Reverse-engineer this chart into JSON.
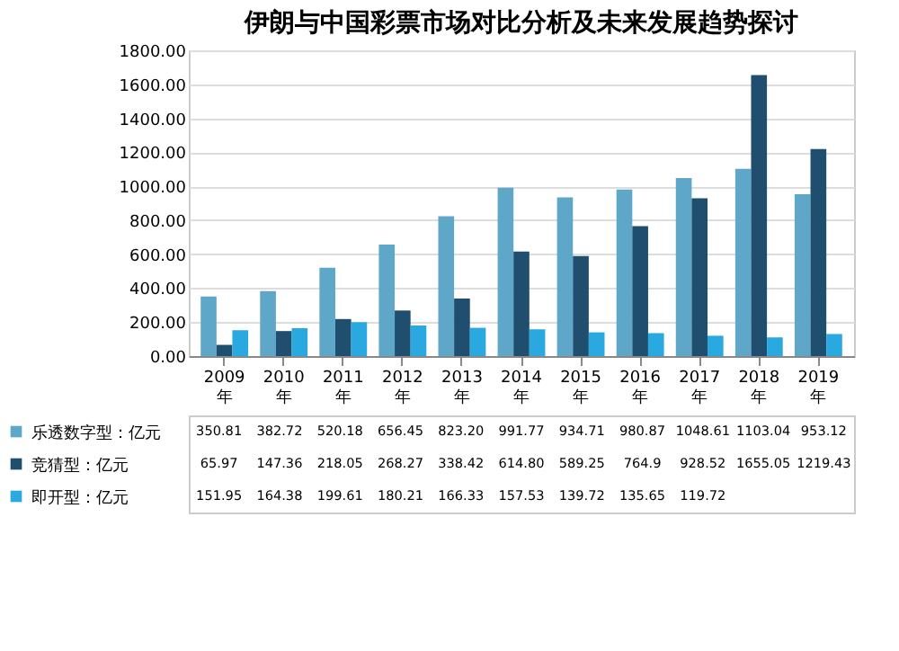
{
  "chart_data": {
    "type": "bar",
    "title": "伊朗与中国彩票市场对比分析及未来发展趋势探讨",
    "categories": [
      "2009年",
      "2010年",
      "2011年",
      "2012年",
      "2013年",
      "2014年",
      "2015年",
      "2016年",
      "2017年",
      "2018年",
      "2019年"
    ],
    "series": [
      {
        "name": "乐透数字型：亿元",
        "color": "#5ea7c9",
        "values": [
          350.81,
          382.72,
          520.18,
          656.45,
          823.2,
          991.77,
          934.71,
          980.87,
          1048.61,
          1103.04,
          953.12
        ],
        "value_labels": [
          "350.81",
          "382.72",
          "520.18",
          "656.45",
          "823.20",
          "991.77",
          "934.71",
          "980.87",
          "1048.61",
          "1103.04",
          "953.12"
        ]
      },
      {
        "name": "竞猜型：亿元",
        "color": "#1f4e6e",
        "values": [
          65.97,
          147.36,
          218.05,
          268.27,
          338.42,
          614.8,
          589.25,
          764.9,
          928.52,
          1655.05,
          1219.43
        ],
        "value_labels": [
          "65.97",
          "147.36",
          "218.05",
          "268.27",
          "338.42",
          "614.80",
          "589.25",
          "764.9",
          "928.52",
          "1655.05",
          "1219.43"
        ]
      },
      {
        "name": "即开型：亿元",
        "color": "#29a9e0",
        "values": [
          151.95,
          164.38,
          199.61,
          180.21,
          166.33,
          157.53,
          139.72,
          135.65,
          119.72,
          110,
          130
        ],
        "value_labels": [
          "151.95",
          "164.38",
          "199.61",
          "180.21",
          "166.33",
          "157.53",
          "139.72",
          "135.65",
          "119.72",
          null,
          null
        ]
      }
    ],
    "ylim": [
      0,
      1800
    ],
    "yticks": [
      {
        "value": 0,
        "label": "0.00"
      },
      {
        "value": 200,
        "label": "200.00"
      },
      {
        "value": 400,
        "label": "400.00"
      },
      {
        "value": 600,
        "label": "600.00"
      },
      {
        "value": 800,
        "label": "800.00"
      },
      {
        "value": 1000,
        "label": "1000.00"
      },
      {
        "value": 1200,
        "label": "1200.00"
      },
      {
        "value": 1400,
        "label": "1400.00"
      },
      {
        "value": 1600,
        "label": "1600.00"
      },
      {
        "value": 1800,
        "label": "1800.00"
      }
    ],
    "grid": "y",
    "legend": "bottom left"
  }
}
